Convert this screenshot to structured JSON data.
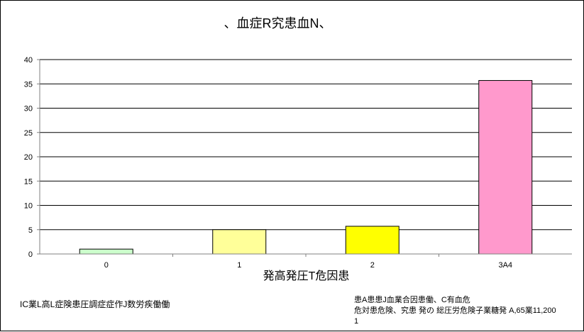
{
  "chart_data": {
    "type": "bar",
    "title": "、血症R究患血N、",
    "xlabel": "発高発圧T危因患",
    "ylabel": "",
    "categories": [
      "0",
      "1",
      "2",
      "3A4"
    ],
    "values": [
      1,
      5,
      5.7,
      35.7
    ],
    "colors": [
      "#ccffcc",
      "#ffff99",
      "#ffff00",
      "#ff99cc"
    ],
    "ylim": [
      0,
      40
    ],
    "yticks": [
      "0",
      "5",
      "10",
      "15",
      "20",
      "25",
      "30",
      "35",
      "40"
    ],
    "grid": true,
    "legend": "none",
    "annotations": {
      "left": "IC業L高L症険患圧調症症作J数労疾働働",
      "right": "患A患患J血業合因患働、C有血危\n危対患危険、究患 発の 総圧労危険子業糖発 A,65業11,200\n1"
    }
  }
}
